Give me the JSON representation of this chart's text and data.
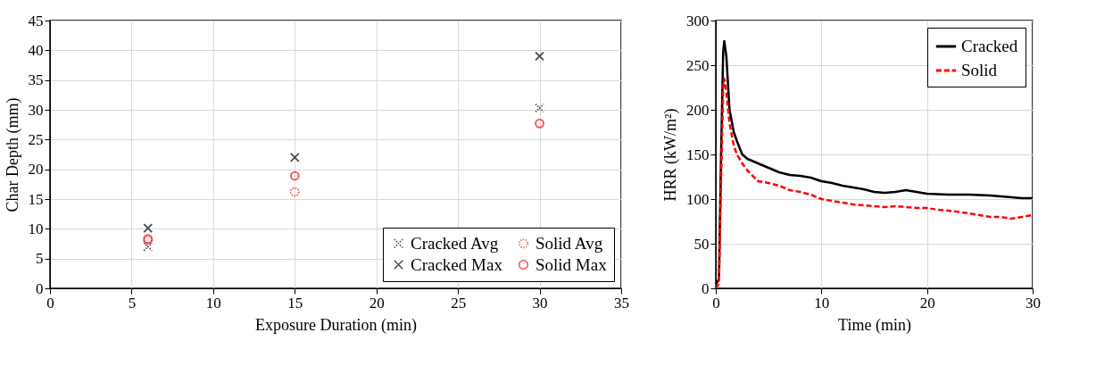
{
  "chart_data": [
    {
      "type": "scatter",
      "xlabel": "Exposure Duration (min)",
      "ylabel": "Char Depth (mm)",
      "x": [
        6,
        15,
        30
      ],
      "xlim": [
        0,
        35
      ],
      "xticks": [
        0,
        5,
        10,
        15,
        20,
        25,
        30,
        35
      ],
      "ylim": [
        0,
        45
      ],
      "yticks": [
        0,
        5,
        10,
        15,
        20,
        25,
        30,
        35,
        40,
        45
      ],
      "grid": true,
      "legend": "bottom right",
      "series": [
        {
          "name": "Cracked Avg",
          "color": "#000000",
          "marker": "cross",
          "line_style": "dotted",
          "values": [
            7,
            null,
            30.3
          ]
        },
        {
          "name": "Cracked Max",
          "color": "#000000",
          "marker": "cross",
          "values": [
            10.1,
            22,
            39
          ]
        },
        {
          "name": "Solid Avg",
          "color": "#ff0000",
          "marker": "circle",
          "line_style": "dotted",
          "values": [
            8.1,
            16.2,
            null
          ]
        },
        {
          "name": "Solid Max",
          "color": "#ff0000",
          "marker": "circle",
          "values": [
            8.3,
            18.9,
            27.7
          ]
        }
      ]
    },
    {
      "type": "line",
      "xlabel": "Time (min)",
      "ylabel": "HRR (kW/m²)",
      "xlim": [
        0,
        30
      ],
      "xticks": [
        0,
        10,
        20,
        30
      ],
      "ylim": [
        0,
        300
      ],
      "yticks": [
        0,
        50,
        100,
        150,
        200,
        250,
        300
      ],
      "grid": true,
      "legend": "top right",
      "marker": "none",
      "series": [
        {
          "name": "Cracked",
          "color": "#000000",
          "line_style": "solid",
          "x": [
            0,
            0.3,
            0.5,
            0.7,
            0.8,
            1,
            1.3,
            1.7,
            2,
            2.5,
            3,
            4,
            5,
            6,
            7,
            8,
            9,
            10,
            11,
            12,
            13,
            14,
            15,
            16,
            17,
            18,
            19,
            20,
            22,
            24,
            26,
            28,
            29,
            30
          ],
          "values": [
            5,
            10,
            150,
            265,
            277,
            260,
            200,
            175,
            165,
            150,
            145,
            140,
            135,
            130,
            127,
            126,
            124,
            120,
            118,
            115,
            113,
            111,
            108,
            107,
            108,
            110,
            108,
            106,
            105,
            105,
            104,
            102,
            101,
            101
          ]
        },
        {
          "name": "Solid",
          "color": "#ff0000",
          "line_style": "dashed",
          "x": [
            0,
            0.3,
            0.5,
            0.7,
            0.8,
            1,
            1.3,
            1.7,
            2,
            2.5,
            3,
            4,
            5,
            6,
            7,
            8,
            9,
            10,
            11,
            12,
            13,
            14,
            15,
            16,
            17,
            18,
            19,
            20,
            21,
            22,
            24,
            25,
            26,
            27,
            28,
            29,
            30
          ],
          "values": [
            0,
            5,
            120,
            225,
            235,
            220,
            185,
            160,
            150,
            140,
            132,
            120,
            118,
            115,
            110,
            108,
            105,
            100,
            98,
            96,
            94,
            93,
            92,
            91,
            92,
            91,
            90,
            90,
            88,
            87,
            84,
            82,
            80,
            80,
            78,
            80,
            82
          ]
        }
      ]
    }
  ]
}
